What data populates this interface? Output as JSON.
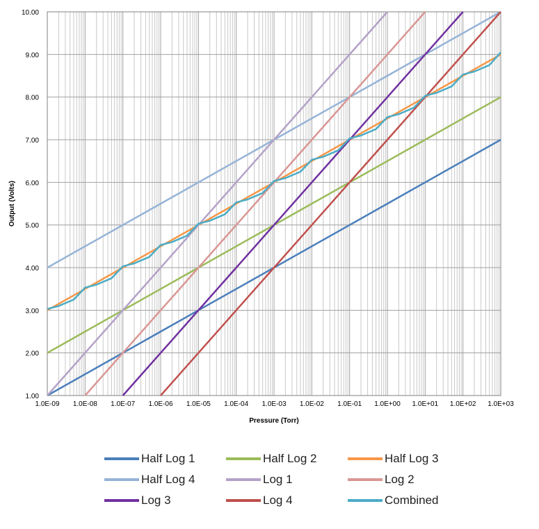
{
  "chart_data": {
    "type": "line",
    "xlabel": "Pressure (Torr)",
    "ylabel": "Output (Volts)",
    "x_scale": "log",
    "xlim": [
      1e-09,
      1000
    ],
    "ylim": [
      1,
      10
    ],
    "grid": true,
    "legend_position": "bottom",
    "x_ticks": [
      1e-09,
      1e-08,
      1e-07,
      1e-06,
      1e-05,
      0.0001,
      0.001,
      0.01,
      0.1,
      1.0,
      10.0,
      100.0,
      1000.0
    ],
    "x_tick_labels": [
      "1.0E-09",
      "1.0E-08",
      "1.0E-07",
      "1.0E-06",
      "1.0E-05",
      "1.0E-04",
      "1.0E-03",
      "1.0E-02",
      "1.0E-01",
      "1.0E+00",
      "1.0E+01",
      "1.0E+02",
      "1.0E+03"
    ],
    "y_ticks": [
      1,
      2,
      3,
      4,
      5,
      6,
      7,
      8,
      9,
      10
    ],
    "y_tick_labels": [
      "1.00",
      "2.00",
      "3.00",
      "4.00",
      "5.00",
      "6.00",
      "7.00",
      "8.00",
      "9.00",
      "10.00"
    ],
    "series": [
      {
        "name": "Half Log 1",
        "color": "#4a7ebb",
        "x": [
          1e-09,
          1e-08,
          1e-07,
          1e-06,
          1e-05,
          0.0001,
          0.001,
          0.01,
          0.1,
          1.0,
          10.0,
          100.0,
          1000.0
        ],
        "y": [
          1.0,
          1.5,
          2.0,
          2.5,
          3.0,
          3.5,
          4.0,
          4.5,
          5.0,
          5.5,
          6.0,
          6.5,
          7.0
        ]
      },
      {
        "name": "Half Log 2",
        "color": "#9bbb59",
        "x": [
          1e-09,
          1e-08,
          1e-07,
          1e-06,
          1e-05,
          0.0001,
          0.001,
          0.01,
          0.1,
          1.0,
          10.0,
          100.0,
          1000.0
        ],
        "y": [
          2.0,
          2.5,
          3.0,
          3.5,
          4.0,
          4.5,
          5.0,
          5.5,
          6.0,
          6.5,
          7.0,
          7.5,
          8.0
        ]
      },
      {
        "name": "Half Log 3",
        "color": "#f79646",
        "x": [
          1e-09,
          1e-08,
          1e-07,
          1e-06,
          1e-05,
          0.0001,
          0.001,
          0.01,
          0.1,
          1.0,
          10.0,
          100.0,
          1000.0
        ],
        "y": [
          3.0,
          3.5,
          4.0,
          4.5,
          5.0,
          5.5,
          6.0,
          6.5,
          7.0,
          7.5,
          8.0,
          8.5,
          9.0
        ]
      },
      {
        "name": "Half Log 4",
        "color": "#95b3d7",
        "x": [
          1e-09,
          1e-08,
          1e-07,
          1e-06,
          1e-05,
          0.0001,
          0.001,
          0.01,
          0.1,
          1.0,
          10.0,
          100.0,
          1000.0
        ],
        "y": [
          4.0,
          4.5,
          5.0,
          5.5,
          6.0,
          6.5,
          7.0,
          7.5,
          8.0,
          8.5,
          9.0,
          9.5,
          10.0
        ]
      },
      {
        "name": "Log 1",
        "color": "#b3a2c7",
        "x": [
          1e-09,
          1e-08,
          1e-07,
          1e-06,
          1e-05,
          0.0001,
          0.001,
          0.01,
          0.1,
          1.0
        ],
        "y": [
          1.0,
          2.0,
          3.0,
          4.0,
          5.0,
          6.0,
          7.0,
          8.0,
          9.0,
          10.0
        ]
      },
      {
        "name": "Log 2",
        "color": "#d99694",
        "x": [
          1e-08,
          1e-07,
          1e-06,
          1e-05,
          0.0001,
          0.001,
          0.01,
          0.1,
          1.0,
          10.0
        ],
        "y": [
          1.0,
          2.0,
          3.0,
          4.0,
          5.0,
          6.0,
          7.0,
          8.0,
          9.0,
          10.0
        ]
      },
      {
        "name": "Log 3",
        "color": "#7030a0",
        "x": [
          1e-07,
          1e-06,
          1e-05,
          0.0001,
          0.001,
          0.01,
          0.1,
          1.0,
          10.0,
          100.0
        ],
        "y": [
          1.0,
          2.0,
          3.0,
          4.0,
          5.0,
          6.0,
          7.0,
          8.0,
          9.0,
          10.0
        ]
      },
      {
        "name": "Log 4",
        "color": "#c0504d",
        "x": [
          1e-06,
          1e-05,
          0.0001,
          0.001,
          0.01,
          0.1,
          1.0,
          10.0,
          100.0,
          1000.0
        ],
        "y": [
          1.0,
          2.0,
          3.0,
          4.0,
          5.0,
          6.0,
          7.0,
          8.0,
          9.0,
          10.0
        ]
      },
      {
        "name": "Combined",
        "color": "#4bacc6",
        "x": [
          1e-09,
          2e-09,
          5e-09,
          1e-08,
          2e-08,
          5e-08,
          1e-07,
          2e-07,
          5e-07,
          1e-06,
          2e-06,
          5e-06,
          1e-05,
          2e-05,
          5e-05,
          0.0001,
          0.0002,
          0.0005,
          0.001,
          0.002,
          0.005,
          0.01,
          0.02,
          0.05,
          0.1,
          0.2,
          0.5,
          1.0,
          2.0,
          5.0,
          10.0,
          20.0,
          50.0,
          100.0,
          200.0,
          500.0,
          1000.0
        ],
        "y": [
          3.03,
          3.1,
          3.25,
          3.53,
          3.6,
          3.75,
          4.03,
          4.1,
          4.25,
          4.53,
          4.6,
          4.75,
          5.03,
          5.1,
          5.25,
          5.53,
          5.6,
          5.75,
          6.03,
          6.1,
          6.25,
          6.53,
          6.6,
          6.75,
          7.03,
          7.1,
          7.25,
          7.53,
          7.6,
          7.75,
          8.03,
          8.1,
          8.25,
          8.53,
          8.6,
          8.75,
          9.05
        ]
      }
    ]
  }
}
